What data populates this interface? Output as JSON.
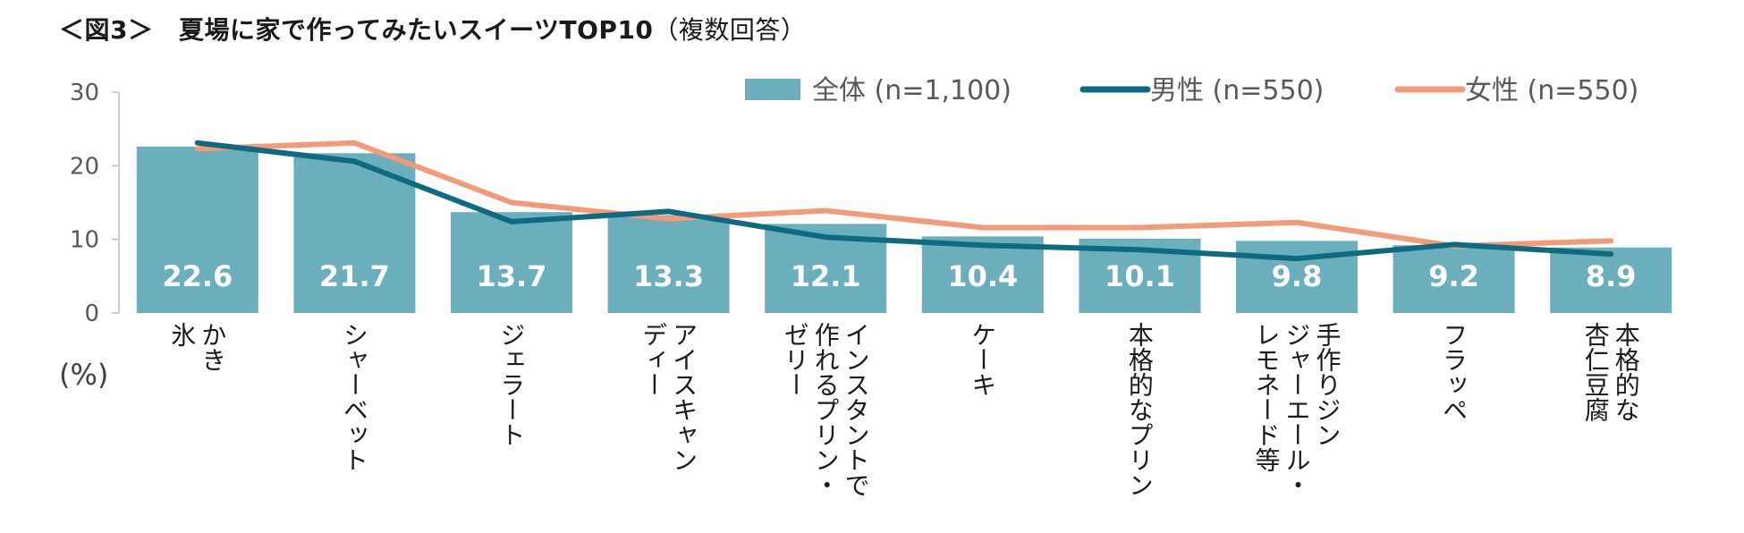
{
  "title": "＜図3＞　夏場に家で作ってみたいスイーツTOP10",
  "subtitle": "（複数回答）",
  "chart_data": {
    "type": "bar",
    "categories": [
      [
        "かき",
        "氷"
      ],
      [
        "シャーベット"
      ],
      [
        "ジェラート"
      ],
      [
        "アイスキャン",
        "ディー"
      ],
      [
        "インスタントで",
        "作れるプリン・",
        "ゼリー"
      ],
      [
        "ケーキ"
      ],
      [
        "本格的なプリン"
      ],
      [
        "手作りジン",
        "ジャーエール・",
        "レモネード等"
      ],
      [
        "フラッペ"
      ],
      [
        "本格的な",
        "杏仁豆腐"
      ]
    ],
    "series": [
      {
        "name": "全体 (n=1,100)",
        "type": "bar",
        "color": "#6bafbc",
        "values": [
          22.6,
          21.7,
          13.7,
          13.3,
          12.1,
          10.4,
          10.1,
          9.8,
          9.2,
          8.9
        ],
        "labels": [
          "22.6",
          "21.7",
          "13.7",
          "13.3",
          "12.1",
          "10.4",
          "10.1",
          "9.8",
          "9.2",
          "8.9"
        ]
      },
      {
        "name": "男性 (n=550)",
        "type": "line",
        "color": "#0e6a80",
        "values": [
          23.1,
          20.6,
          12.4,
          13.8,
          10.3,
          9.2,
          8.6,
          7.4,
          9.3,
          8.0
        ]
      },
      {
        "name": "女性 (n=550)",
        "type": "line",
        "color": "#f59a78",
        "values": [
          22.3,
          23.1,
          15.0,
          12.8,
          13.9,
          11.6,
          11.6,
          12.3,
          9.1,
          9.8
        ]
      }
    ],
    "yticks": [
      "0",
      "10",
      "20",
      "30"
    ],
    "ylim": [
      0,
      30
    ],
    "ylabel": "(%)",
    "legend_position": "top-right",
    "grid": false
  }
}
